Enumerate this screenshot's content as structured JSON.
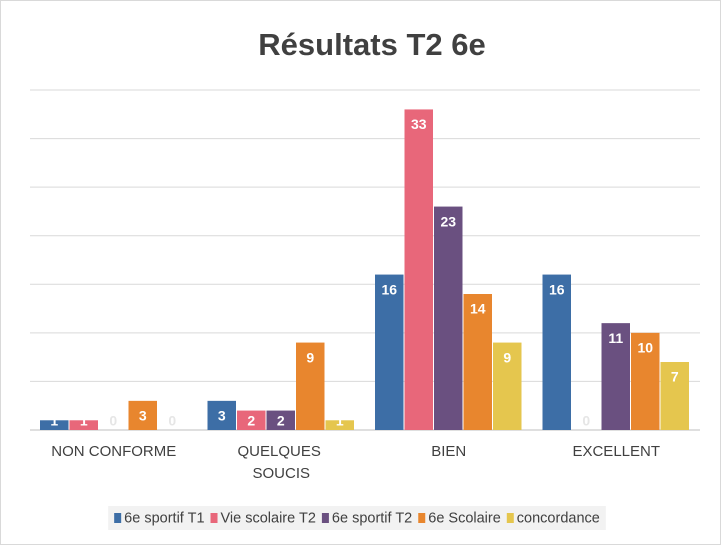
{
  "chart_data": {
    "type": "bar",
    "title": "Résultats T2 6e",
    "categories": [
      "NON CONFORME",
      "QUELQUES SOUCIS",
      "BIEN",
      "EXCELLENT"
    ],
    "series": [
      {
        "name": "6e sportif T1",
        "color": "#3d6ea6",
        "values": [
          1,
          3,
          16,
          16
        ]
      },
      {
        "name": "Vie scolaire T2",
        "color": "#e8677a",
        "values": [
          1,
          2,
          33,
          0
        ]
      },
      {
        "name": "6e sportif T2",
        "color": "#6a5080",
        "values": [
          0,
          2,
          23,
          11
        ]
      },
      {
        "name": "6e Scolaire",
        "color": "#e8862e",
        "values": [
          3,
          9,
          14,
          10
        ]
      },
      {
        "name": "concordance",
        "color": "#e5c64e",
        "values": [
          0,
          1,
          9,
          7
        ]
      }
    ],
    "ylim": [
      0,
      35
    ],
    "yticks": [
      0,
      5,
      10,
      15,
      20,
      25,
      30,
      35
    ],
    "grid": true,
    "legend": "bottom"
  }
}
